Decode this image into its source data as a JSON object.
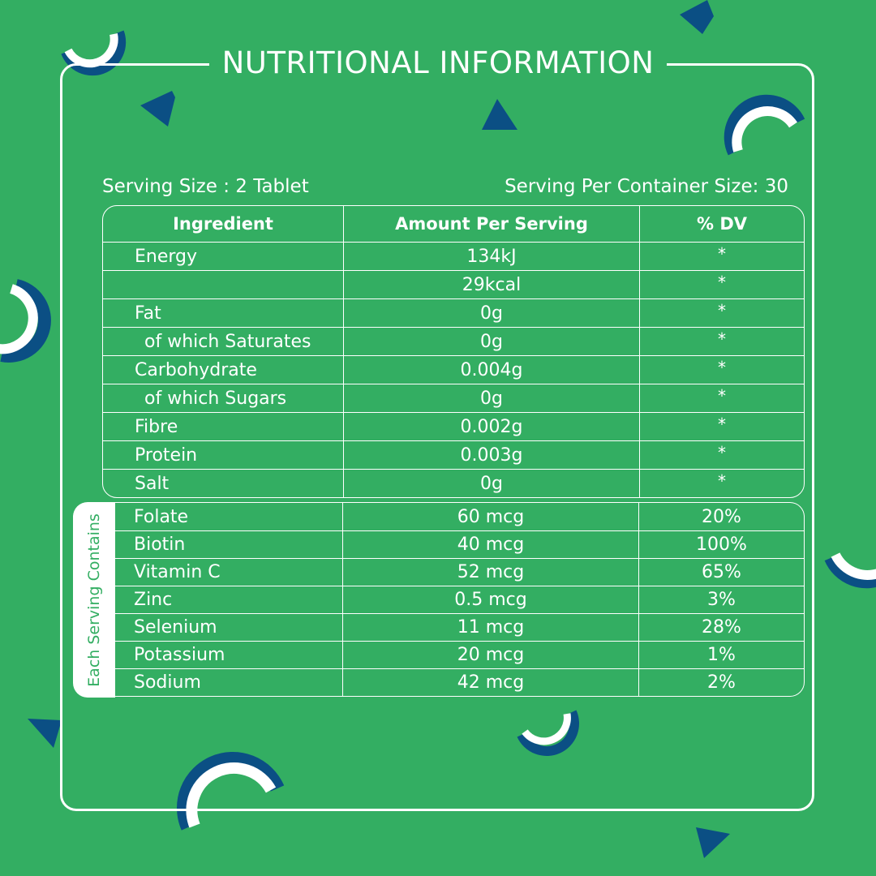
{
  "title": "NUTRITIONAL INFORMATION",
  "serving_size": "Serving Size : 2 Tablet",
  "serving_per_container": "Serving Per Container Size: 30",
  "headers": {
    "ingredient": "Ingredient",
    "amount": "Amount Per Serving",
    "dv": "% DV"
  },
  "nutrition_rows": [
    {
      "ingredient": "Energy",
      "amount": "134kJ",
      "dv": "*"
    },
    {
      "ingredient": "",
      "amount": "29kcal",
      "dv": "*"
    },
    {
      "ingredient": "Fat",
      "amount": "0g",
      "dv": "*"
    },
    {
      "ingredient": "of which Saturates",
      "amount": "0g",
      "dv": "*"
    },
    {
      "ingredient": "Carbohydrate",
      "amount": "0.004g",
      "dv": "*"
    },
    {
      "ingredient": "of which Sugars",
      "amount": "0g",
      "dv": "*"
    },
    {
      "ingredient": "Fibre",
      "amount": "0.002g",
      "dv": "*"
    },
    {
      "ingredient": "Protein",
      "amount": "0.003g",
      "dv": "*"
    },
    {
      "ingredient": "Salt",
      "amount": "0g",
      "dv": "*"
    }
  ],
  "each_serving_label": "Each Serving Contains",
  "vitamin_rows": [
    {
      "ingredient": "Folate",
      "amount": "60 mcg",
      "dv": "20%"
    },
    {
      "ingredient": "Biotin",
      "amount": "40 mcg",
      "dv": "100%"
    },
    {
      "ingredient": "Vitamin C",
      "amount": "52 mcg",
      "dv": "65%"
    },
    {
      "ingredient": "Zinc",
      "amount": "0.5 mcg",
      "dv": "3%"
    },
    {
      "ingredient": "Selenium",
      "amount": "11 mcg",
      "dv": "28%"
    },
    {
      "ingredient": "Potassium",
      "amount": "20 mcg",
      "dv": "1%"
    },
    {
      "ingredient": "Sodium",
      "amount": "42 mcg",
      "dv": "2%"
    }
  ],
  "colors": {
    "background": "#33ae62",
    "accent": "#0b4f84",
    "foreground": "#ffffff"
  }
}
